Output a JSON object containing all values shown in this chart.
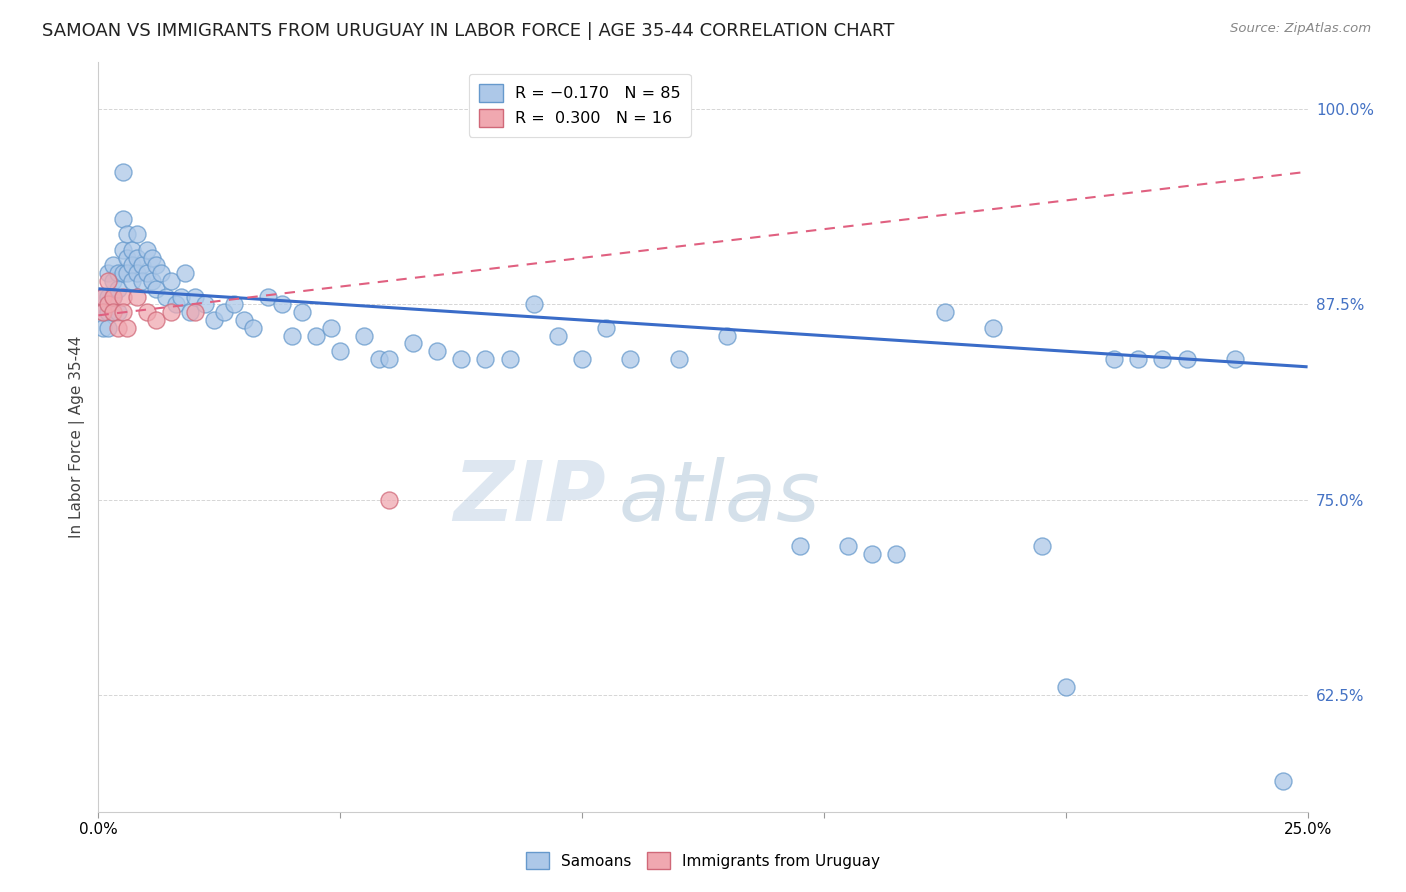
{
  "title": "SAMOAN VS IMMIGRANTS FROM URUGUAY IN LABOR FORCE | AGE 35-44 CORRELATION CHART",
  "source": "Source: ZipAtlas.com",
  "ylabel": "In Labor Force | Age 35-44",
  "xlim": [
    0.0,
    0.25
  ],
  "ylim": [
    0.55,
    1.03
  ],
  "ytick_vals": [
    0.625,
    0.75,
    0.875,
    1.0
  ],
  "blue_line_color": "#3a6cc8",
  "pink_line_color": "#e06080",
  "blue_dot_facecolor": "#adc8e8",
  "blue_dot_edgecolor": "#6699cc",
  "pink_dot_facecolor": "#f0a8b0",
  "pink_dot_edgecolor": "#d06878",
  "background_color": "#ffffff",
  "grid_color": "#cccccc",
  "watermark_zip_color": "#c8d8e8",
  "watermark_atlas_color": "#b8ccdc",
  "blue_x": [
    0.001,
    0.001,
    0.001,
    0.002,
    0.002,
    0.002,
    0.002,
    0.003,
    0.003,
    0.003,
    0.003,
    0.004,
    0.004,
    0.004,
    0.005,
    0.005,
    0.005,
    0.005,
    0.006,
    0.006,
    0.006,
    0.007,
    0.007,
    0.007,
    0.008,
    0.008,
    0.008,
    0.009,
    0.009,
    0.01,
    0.01,
    0.011,
    0.011,
    0.012,
    0.012,
    0.013,
    0.014,
    0.015,
    0.016,
    0.017,
    0.018,
    0.019,
    0.02,
    0.022,
    0.024,
    0.026,
    0.028,
    0.03,
    0.032,
    0.035,
    0.038,
    0.04,
    0.042,
    0.045,
    0.048,
    0.05,
    0.055,
    0.058,
    0.06,
    0.065,
    0.07,
    0.075,
    0.08,
    0.085,
    0.09,
    0.095,
    0.1,
    0.105,
    0.11,
    0.12,
    0.13,
    0.145,
    0.155,
    0.16,
    0.165,
    0.175,
    0.185,
    0.195,
    0.2,
    0.21,
    0.215,
    0.22,
    0.225,
    0.235,
    0.245
  ],
  "blue_y": [
    0.88,
    0.87,
    0.86,
    0.895,
    0.88,
    0.87,
    0.86,
    0.9,
    0.89,
    0.88,
    0.87,
    0.895,
    0.885,
    0.87,
    0.96,
    0.93,
    0.91,
    0.895,
    0.92,
    0.905,
    0.895,
    0.91,
    0.9,
    0.89,
    0.92,
    0.905,
    0.895,
    0.9,
    0.89,
    0.91,
    0.895,
    0.905,
    0.89,
    0.9,
    0.885,
    0.895,
    0.88,
    0.89,
    0.875,
    0.88,
    0.895,
    0.87,
    0.88,
    0.875,
    0.865,
    0.87,
    0.875,
    0.865,
    0.86,
    0.88,
    0.875,
    0.855,
    0.87,
    0.855,
    0.86,
    0.845,
    0.855,
    0.84,
    0.84,
    0.85,
    0.845,
    0.84,
    0.84,
    0.84,
    0.875,
    0.855,
    0.84,
    0.86,
    0.84,
    0.84,
    0.855,
    0.72,
    0.72,
    0.715,
    0.715,
    0.87,
    0.86,
    0.72,
    0.63,
    0.84,
    0.84,
    0.84,
    0.84,
    0.84,
    0.57
  ],
  "pink_x": [
    0.001,
    0.001,
    0.002,
    0.002,
    0.003,
    0.003,
    0.004,
    0.005,
    0.005,
    0.006,
    0.008,
    0.01,
    0.012,
    0.015,
    0.02,
    0.06
  ],
  "pink_y": [
    0.88,
    0.87,
    0.89,
    0.875,
    0.88,
    0.87,
    0.86,
    0.88,
    0.87,
    0.86,
    0.88,
    0.87,
    0.865,
    0.87,
    0.87,
    0.75
  ],
  "blue_trend_x0": 0.0,
  "blue_trend_y0": 0.885,
  "blue_trend_x1": 0.25,
  "blue_trend_y1": 0.835,
  "pink_trend_x0": 0.0,
  "pink_trend_y0": 0.868,
  "pink_trend_x1": 0.25,
  "pink_trend_y1": 0.96
}
